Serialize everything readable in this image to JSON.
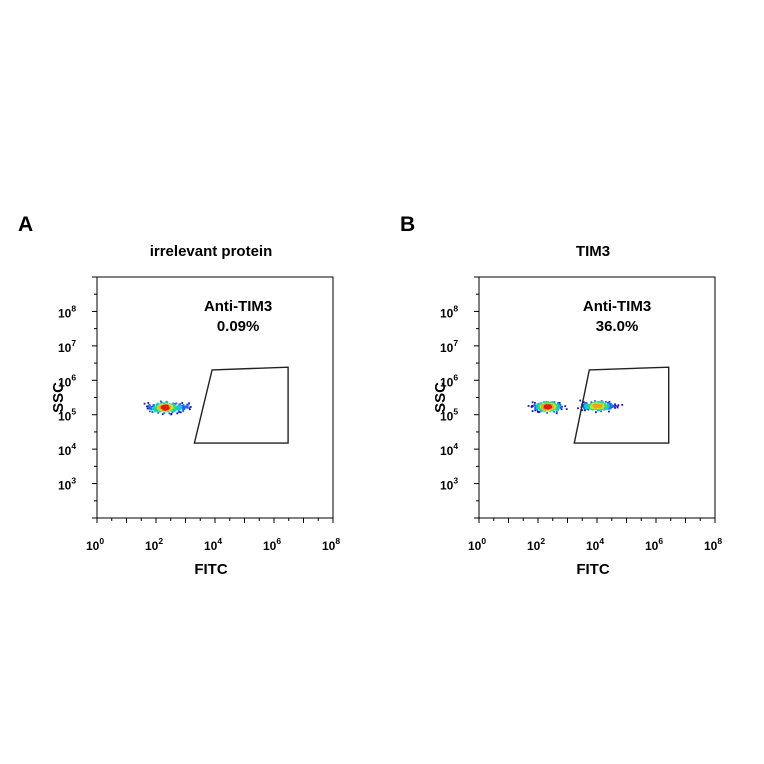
{
  "chart_data": [
    {
      "type": "scatter",
      "panel_label": "A",
      "title": "irrelevant protein",
      "xlabel": "FITC",
      "ylabel": "SSC",
      "x_scale": "log",
      "y_scale": "log",
      "xlim": [
        1,
        100000000
      ],
      "ylim": [
        100,
        1000000000
      ],
      "x_ticks": [
        {
          "value": 1,
          "base": "10",
          "exp": "0"
        },
        {
          "value": 100,
          "base": "10",
          "exp": "2"
        },
        {
          "value": 10000,
          "base": "10",
          "exp": "4"
        },
        {
          "value": 1000000,
          "base": "10",
          "exp": "6"
        },
        {
          "value": 100000000,
          "base": "10",
          "exp": "8"
        }
      ],
      "y_ticks": [
        {
          "value": 1000,
          "base": "10",
          "exp": "3"
        },
        {
          "value": 10000,
          "base": "10",
          "exp": "4"
        },
        {
          "value": 100000,
          "base": "10",
          "exp": "5"
        },
        {
          "value": 1000000,
          "base": "10",
          "exp": "6"
        },
        {
          "value": 10000000,
          "base": "10",
          "exp": "7"
        },
        {
          "value": 100000000,
          "base": "10",
          "exp": "8"
        }
      ],
      "gate": {
        "name": "Anti-TIM3",
        "percent": "0.09%",
        "vertices": [
          [
            8000,
            2000000
          ],
          [
            3000000,
            2400000
          ],
          [
            3000000,
            15000
          ],
          [
            2000,
            15000
          ]
        ]
      },
      "populations": [
        {
          "x_center": 200,
          "y_center": 160000,
          "x_spread_log10": 0.45,
          "y_spread_log10": 0.13,
          "count": 420
        },
        {
          "x_center": 800,
          "y_center": 170000,
          "x_spread_log10": 0.35,
          "y_spread_log10": 0.1,
          "count": 50
        }
      ],
      "colormap": [
        "#1a10c8",
        "#1e66f0",
        "#10c8e0",
        "#30e070",
        "#c8e82a",
        "#f0a020",
        "#e81818"
      ]
    },
    {
      "type": "scatter",
      "panel_label": "B",
      "title": "TIM3",
      "xlabel": "FITC",
      "ylabel": "SSC",
      "x_scale": "log",
      "y_scale": "log",
      "xlim": [
        1,
        100000000
      ],
      "ylim": [
        100,
        1000000000
      ],
      "x_ticks": [
        {
          "value": 1,
          "base": "10",
          "exp": "0"
        },
        {
          "value": 100,
          "base": "10",
          "exp": "2"
        },
        {
          "value": 10000,
          "base": "10",
          "exp": "4"
        },
        {
          "value": 1000000,
          "base": "10",
          "exp": "6"
        },
        {
          "value": 100000000,
          "base": "10",
          "exp": "8"
        }
      ],
      "y_ticks": [
        {
          "value": 1000,
          "base": "10",
          "exp": "3"
        },
        {
          "value": 10000,
          "base": "10",
          "exp": "4"
        },
        {
          "value": 100000,
          "base": "10",
          "exp": "5"
        },
        {
          "value": 1000000,
          "base": "10",
          "exp": "6"
        },
        {
          "value": 10000000,
          "base": "10",
          "exp": "7"
        },
        {
          "value": 100000000,
          "base": "10",
          "exp": "8"
        }
      ],
      "gate": {
        "name": "Anti-TIM3",
        "percent": "36.0%",
        "vertices": [
          [
            5500,
            2000000
          ],
          [
            2700000,
            2400000
          ],
          [
            2700000,
            15000
          ],
          [
            1700,
            15000
          ]
        ]
      },
      "populations": [
        {
          "x_center": 220,
          "y_center": 170000,
          "x_spread_log10": 0.4,
          "y_spread_log10": 0.12,
          "count": 520
        },
        {
          "x_center": 10000,
          "y_center": 180000,
          "x_spread_log10": 0.5,
          "y_spread_log10": 0.11,
          "count": 460
        }
      ],
      "colormap": [
        "#1a10c8",
        "#1e66f0",
        "#10c8e0",
        "#30e070",
        "#c8e82a",
        "#f0a020",
        "#e81818"
      ]
    }
  ]
}
